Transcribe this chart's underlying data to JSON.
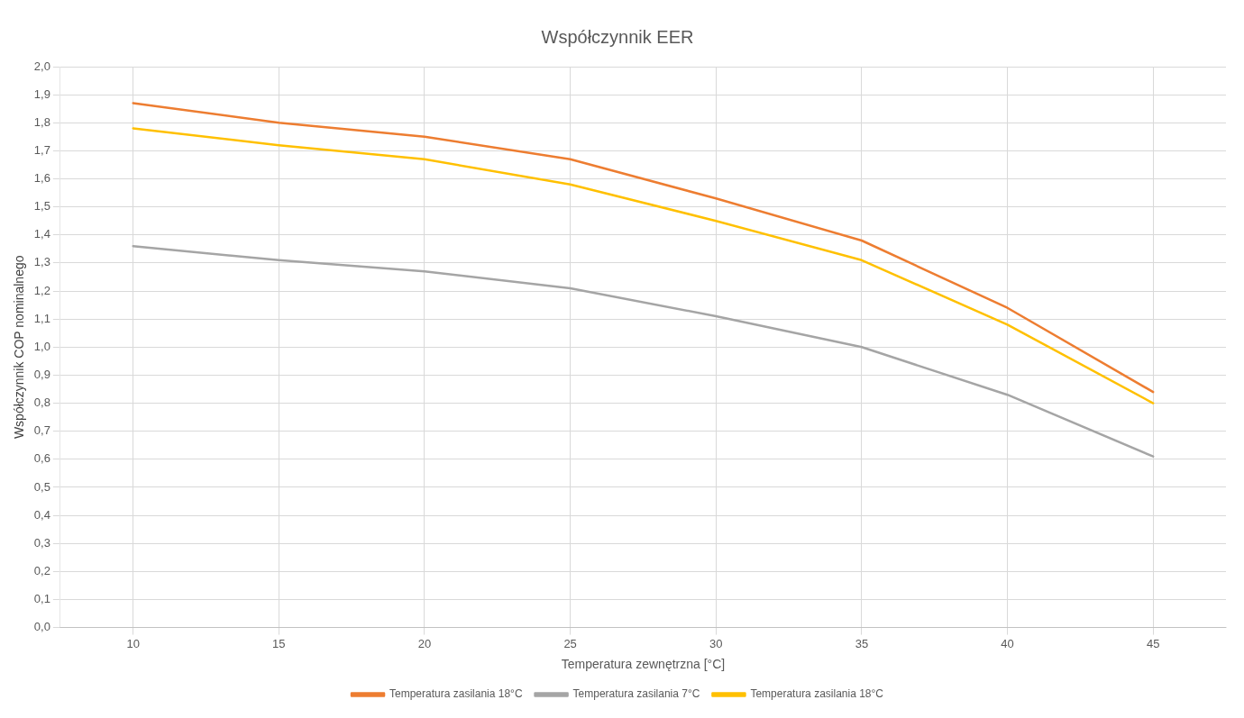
{
  "chart_data": {
    "type": "line",
    "title": "Współczynnik EER",
    "xlabel": "Temperatura zewnętrzna [°C]",
    "ylabel": "Współczynnik COP nominalnego",
    "categories": [
      "10",
      "15",
      "20",
      "25",
      "30",
      "35",
      "40",
      "45"
    ],
    "series": [
      {
        "name": "Temperatura zasilania 18°C",
        "color": "#ed7d31",
        "values": [
          1.87,
          1.8,
          1.75,
          1.67,
          1.53,
          1.38,
          1.14,
          0.84
        ]
      },
      {
        "name": "Temperatura zasilania 7°C",
        "color": "#a5a5a5",
        "values": [
          1.36,
          1.31,
          1.27,
          1.21,
          1.11,
          1.0,
          0.83,
          0.61
        ]
      },
      {
        "name": "Temperatura zasilania 18°C",
        "color": "#ffc000",
        "values": [
          1.78,
          1.72,
          1.67,
          1.58,
          1.45,
          1.31,
          1.08,
          0.8
        ]
      }
    ],
    "ylim": [
      0,
      2
    ],
    "yticks": [
      {
        "value": 0,
        "label": "0,0"
      },
      {
        "value": 0.1,
        "label": "0,1"
      },
      {
        "value": 0.2,
        "label": "0,2"
      },
      {
        "value": 0.3,
        "label": "0,3"
      },
      {
        "value": 0.4,
        "label": "0,4"
      },
      {
        "value": 0.5,
        "label": "0,5"
      },
      {
        "value": 0.6,
        "label": "0,6"
      },
      {
        "value": 0.7,
        "label": "0,7"
      },
      {
        "value": 0.8,
        "label": "0,8"
      },
      {
        "value": 0.9,
        "label": "0,9"
      },
      {
        "value": 1,
        "label": "1,0"
      },
      {
        "value": 1.1,
        "label": "1,1"
      },
      {
        "value": 1.2,
        "label": "1,2"
      },
      {
        "value": 1.3,
        "label": "1,3"
      },
      {
        "value": 1.4,
        "label": "1,4"
      },
      {
        "value": 1.5,
        "label": "1,5"
      },
      {
        "value": 1.6,
        "label": "1,6"
      },
      {
        "value": 1.7,
        "label": "1,7"
      },
      {
        "value": 1.8,
        "label": "1,8"
      },
      {
        "value": 1.9,
        "label": "1,9"
      },
      {
        "value": 2,
        "label": "2,0"
      }
    ],
    "grid": true,
    "legend": "bottom",
    "marker": "none",
    "line_style": "solid"
  }
}
